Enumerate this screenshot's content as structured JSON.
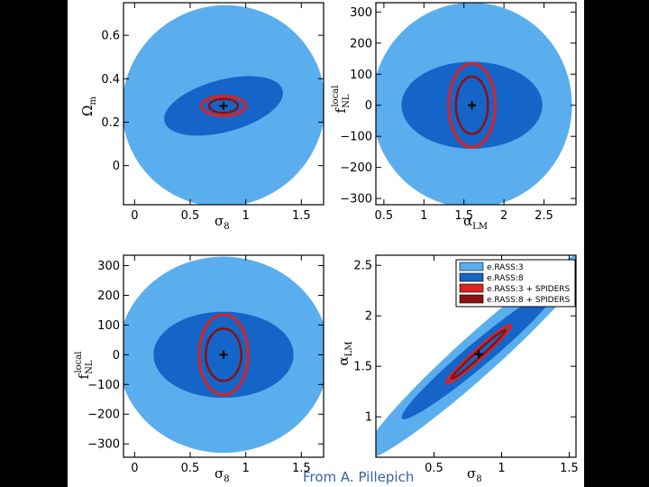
{
  "credit": "From A. Pillepich",
  "colors": {
    "light": "#5aaeee",
    "dark": "#1565c8",
    "red": "#dd2222",
    "darkred": "#8b1010",
    "marker": "#000000"
  },
  "legend": {
    "items": [
      {
        "label": "e.RASS:3",
        "color": "#5aaeee"
      },
      {
        "label": "e.RASS:8",
        "color": "#1565c8"
      },
      {
        "label": "e.RASS:3 + SPIDERS",
        "color": "#dd2222"
      },
      {
        "label": "e.RASS:8 + SPIDERS",
        "color": "#8b1010"
      }
    ]
  },
  "chart_data": [
    {
      "type": "contour-ellipses",
      "id": "panel1",
      "xlabel": "σ8",
      "ylabel": "Ωm",
      "xlim": [
        -0.1,
        1.7
      ],
      "ylim": [
        -0.18,
        0.75
      ],
      "xticks": [
        0,
        0.5,
        1,
        1.5
      ],
      "xtick_labels": [
        "0",
        "0.5",
        "1",
        "1.5"
      ],
      "yticks": [
        0,
        0.2,
        0.4,
        0.6
      ],
      "ytick_labels": [
        "0",
        "0.2",
        "0.4",
        "0.6"
      ],
      "center": [
        0.8,
        0.275
      ],
      "ellipses": [
        {
          "series": "e.RASS:3",
          "style": "fill",
          "cx": 0.8,
          "cy": 0.275,
          "rx": 0.92,
          "ry": 0.46,
          "angle": -35
        },
        {
          "series": "e.RASS:8",
          "style": "fill",
          "cx": 0.8,
          "cy": 0.275,
          "rx": 0.55,
          "ry": 0.12,
          "angle": -15
        },
        {
          "series": "e.RASS:3 + SPIDERS",
          "style": "line",
          "cx": 0.8,
          "cy": 0.275,
          "rx": 0.2,
          "ry": 0.045,
          "angle": 0
        },
        {
          "series": "e.RASS:8 + SPIDERS",
          "style": "line",
          "cx": 0.8,
          "cy": 0.275,
          "rx": 0.13,
          "ry": 0.032,
          "angle": 0
        }
      ]
    },
    {
      "type": "contour-ellipses",
      "id": "panel2",
      "xlabel": "αLM",
      "ylabel": "fNL local",
      "xlim": [
        0.4,
        2.9
      ],
      "ylim": [
        -320,
        330
      ],
      "xticks": [
        0.5,
        1,
        1.5,
        2,
        2.5
      ],
      "xtick_labels": [
        "0.5",
        "1",
        "1.5",
        "2",
        "2.5"
      ],
      "yticks": [
        -300,
        -200,
        -100,
        0,
        100,
        200,
        300
      ],
      "ytick_labels": [
        "−300",
        "−200",
        "−100",
        "0",
        "100",
        "200",
        "300"
      ],
      "center": [
        1.6,
        0
      ],
      "ellipses": [
        {
          "series": "e.RASS:3",
          "style": "fill",
          "cx": 1.6,
          "cy": 0,
          "rx": 1.25,
          "ry": 330,
          "angle": 0
        },
        {
          "series": "e.RASS:8",
          "style": "fill",
          "cx": 1.6,
          "cy": 0,
          "rx": 0.88,
          "ry": 140,
          "angle": 0
        },
        {
          "series": "e.RASS:3 + SPIDERS",
          "style": "line",
          "cx": 1.6,
          "cy": 0,
          "rx": 0.29,
          "ry": 135,
          "angle": 0
        },
        {
          "series": "e.RASS:8 + SPIDERS",
          "style": "line",
          "cx": 1.6,
          "cy": 0,
          "rx": 0.2,
          "ry": 92,
          "angle": 0
        }
      ]
    },
    {
      "type": "contour-ellipses",
      "id": "panel3",
      "xlabel": "σ8",
      "ylabel": "fNL local",
      "xlim": [
        -0.1,
        1.7
      ],
      "ylim": [
        -345,
        335
      ],
      "xticks": [
        0,
        0.5,
        1,
        1.5
      ],
      "xtick_labels": [
        "0",
        "0.5",
        "1",
        "1.5"
      ],
      "yticks": [
        -300,
        -200,
        -100,
        0,
        100,
        200,
        300
      ],
      "ytick_labels": [
        "−300",
        "−200",
        "−100",
        "0",
        "100",
        "200",
        "300"
      ],
      "center": [
        0.8,
        0
      ],
      "ellipses": [
        {
          "series": "e.RASS:3",
          "style": "fill",
          "cx": 0.8,
          "cy": 0,
          "rx": 0.95,
          "ry": 330,
          "angle": 0
        },
        {
          "series": "e.RASS:8",
          "style": "fill",
          "cx": 0.8,
          "cy": 0,
          "rx": 0.63,
          "ry": 145,
          "angle": 0
        },
        {
          "series": "e.RASS:3 + SPIDERS",
          "style": "line",
          "cx": 0.8,
          "cy": 0,
          "rx": 0.22,
          "ry": 135,
          "angle": 0
        },
        {
          "series": "e.RASS:8 + SPIDERS",
          "style": "line",
          "cx": 0.8,
          "cy": 0,
          "rx": 0.16,
          "ry": 88,
          "angle": 0
        }
      ]
    },
    {
      "type": "contour-ellipses",
      "id": "panel4",
      "xlabel": "σ8",
      "ylabel": "αLM",
      "xlim": [
        0.07,
        1.55
      ],
      "ylim": [
        0.6,
        2.6
      ],
      "xticks": [
        0.5,
        1,
        1.5
      ],
      "xtick_labels": [
        "0.5",
        "1",
        "1.5"
      ],
      "yticks": [
        1,
        1.5,
        2,
        2.5
      ],
      "ytick_labels": [
        "1",
        "1.5",
        "2",
        "2.5"
      ],
      "center": [
        0.83,
        1.62
      ],
      "ellipses": [
        {
          "series": "e.RASS:3",
          "style": "fill",
          "cx": 0.83,
          "cy": 1.62,
          "rx": 1.15,
          "ry": 0.2,
          "angle": -42
        },
        {
          "series": "e.RASS:8",
          "style": "fill",
          "cx": 0.83,
          "cy": 1.62,
          "rx": 0.74,
          "ry": 0.12,
          "angle": -40
        },
        {
          "series": "e.RASS:3 + SPIDERS",
          "style": "line",
          "cx": 0.83,
          "cy": 1.62,
          "rx": 0.32,
          "ry": 0.045,
          "angle": -42
        },
        {
          "series": "e.RASS:8 + SPIDERS",
          "style": "line",
          "cx": 0.83,
          "cy": 1.62,
          "rx": 0.27,
          "ry": 0.03,
          "angle": -42
        }
      ]
    }
  ]
}
